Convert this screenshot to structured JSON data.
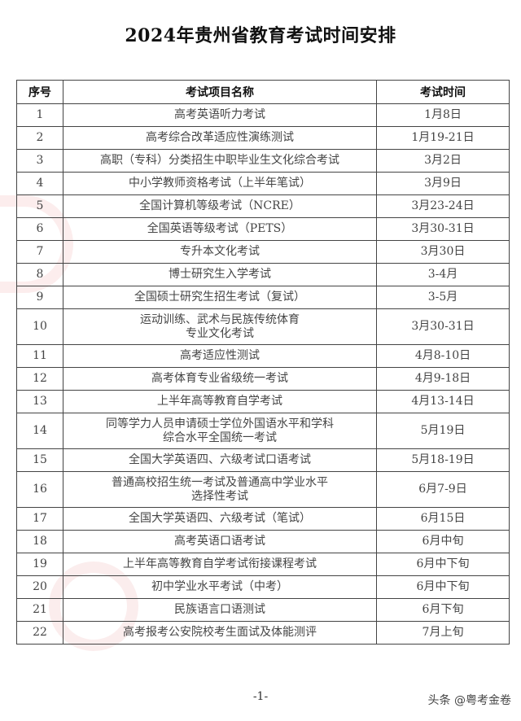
{
  "title": "2024年贵州省教育考试时间安排",
  "table": {
    "headers": [
      "序号",
      "考试项目名称",
      "考试时间"
    ],
    "rows": [
      {
        "no": "1",
        "name": "高考英语听力考试",
        "time": "1月8日"
      },
      {
        "no": "2",
        "name": "高考综合改革适应性演练测试",
        "time": "1月19-21日"
      },
      {
        "no": "3",
        "name": "高职（专科）分类招生中职毕业生文化综合考试",
        "time": "3月2日"
      },
      {
        "no": "4",
        "name": "中小学教师资格考试（上半年笔试）",
        "time": "3月9日"
      },
      {
        "no": "5",
        "name": "全国计算机等级考试（NCRE）",
        "time": "3月23-24日"
      },
      {
        "no": "6",
        "name": "全国英语等级考试（PETS）",
        "time": "3月30-31日"
      },
      {
        "no": "7",
        "name": "专升本文化考试",
        "time": "3月30日"
      },
      {
        "no": "8",
        "name": "博士研究生入学考试",
        "time": "3-4月"
      },
      {
        "no": "9",
        "name": "全国硕士研究生招生考试（复试）",
        "time": "3-5月"
      },
      {
        "no": "10",
        "name": "运动训练、武术与民族传统体育",
        "name2": "专业文化考试",
        "time": "3月30-31日"
      },
      {
        "no": "11",
        "name": "高考适应性测试",
        "time": "4月8-10日"
      },
      {
        "no": "12",
        "name": "高考体育专业省级统一考试",
        "time": "4月9-18日"
      },
      {
        "no": "13",
        "name": "上半年高等教育自学考试",
        "time": "4月13-14日"
      },
      {
        "no": "14",
        "name": "同等学力人员申请硕士学位外国语水平和学科",
        "name2": "综合水平全国统一考试",
        "time": "5月19日"
      },
      {
        "no": "15",
        "name": "全国大学英语四、六级考试口语考试",
        "time": "5月18-19日"
      },
      {
        "no": "16",
        "name": "普通高校招生统一考试及普通高中学业水平",
        "name2": "选择性考试",
        "time": "6月7-9日"
      },
      {
        "no": "17",
        "name": "全国大学英语四、六级考试（笔试）",
        "time": "6月15日"
      },
      {
        "no": "18",
        "name": "高考英语口语考试",
        "time": "6月中旬"
      },
      {
        "no": "19",
        "name": "上半年高等教育自学考试衔接课程考试",
        "time": "6月中下旬"
      },
      {
        "no": "20",
        "name": "初中学业水平考试（中考）",
        "time": "6月中下旬"
      },
      {
        "no": "21",
        "name": "民族语言口语测试",
        "time": "6月下旬"
      },
      {
        "no": "22",
        "name": "高考报考公安院校考生面试及体能测评",
        "time": "7月上旬"
      }
    ]
  },
  "page_number": "-1-",
  "credit": "头条 @粤考金卷",
  "colors": {
    "stamp": "#dc5050"
  }
}
